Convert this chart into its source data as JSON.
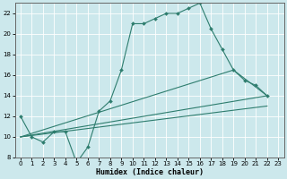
{
  "title": "",
  "xlabel": "Humidex (Indice chaleur)",
  "ylabel": "",
  "bg_color": "#cce8ec",
  "grid_color": "#ffffff",
  "line_color": "#2e7d6e",
  "xlim": [
    -0.5,
    23.5
  ],
  "ylim": [
    8,
    23
  ],
  "xticks": [
    0,
    1,
    2,
    3,
    4,
    5,
    6,
    7,
    8,
    9,
    10,
    11,
    12,
    13,
    14,
    15,
    16,
    17,
    18,
    19,
    20,
    21,
    22,
    23
  ],
  "yticks": [
    8,
    10,
    12,
    14,
    16,
    18,
    20,
    22
  ],
  "line1_x": [
    0,
    1,
    2,
    3,
    4,
    5,
    6,
    7,
    8,
    9,
    10,
    11,
    12,
    13,
    14,
    15,
    16,
    17,
    18,
    19,
    20,
    21,
    22
  ],
  "line1_y": [
    12,
    10,
    9.5,
    10.5,
    10.5,
    7.5,
    9,
    12.5,
    13.5,
    16.5,
    21,
    21,
    21.5,
    22,
    22,
    22.5,
    23,
    20.5,
    18.5,
    16.5,
    15.5,
    15,
    14
  ],
  "line2_x": [
    0,
    22
  ],
  "line2_y": [
    10,
    14
  ],
  "line3_x": [
    0,
    22
  ],
  "line3_y": [
    10,
    13
  ],
  "line4_x": [
    0,
    19,
    22
  ],
  "line4_y": [
    10,
    16.5,
    14
  ]
}
